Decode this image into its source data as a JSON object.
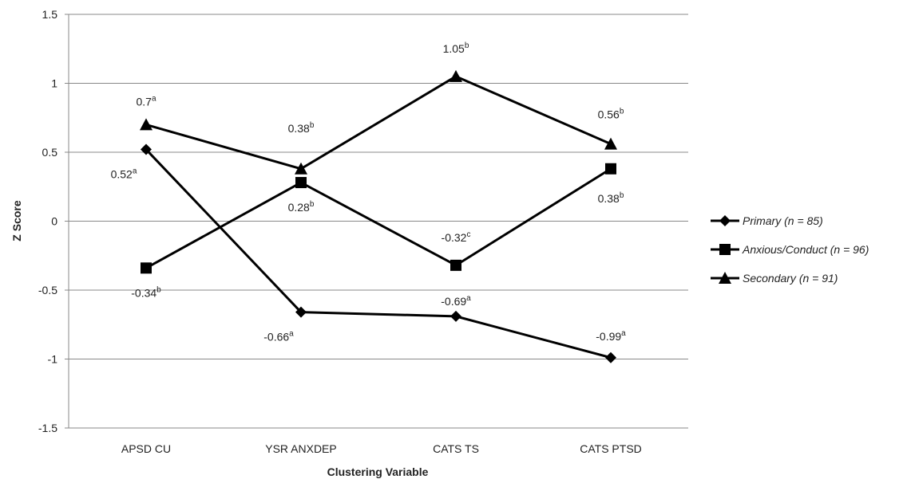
{
  "chart_data": {
    "type": "line",
    "title": "",
    "xlabel": "Clustering Variable",
    "ylabel": "Z Score",
    "categories": [
      "APSD CU",
      "YSR ANXDEP",
      "CATS TS",
      "CATS PTSD"
    ],
    "ylim": [
      -1.5,
      1.5
    ],
    "yticks": [
      "1.5",
      "1",
      "0.5",
      "0",
      "-0.5",
      "-1",
      "-1.5"
    ],
    "ytick_values": [
      1.5,
      1,
      0.5,
      0,
      -0.5,
      -1,
      -1.5
    ],
    "grid": true,
    "legend_position": "right",
    "series": [
      {
        "name": "Primary (n = 85)",
        "marker": "diamond",
        "values": [
          0.52,
          -0.66,
          -0.69,
          -0.99
        ],
        "labels": [
          {
            "value": "0.52",
            "sup": "a"
          },
          {
            "value": "-0.66",
            "sup": "a"
          },
          {
            "value": "-0.69",
            "sup": "a"
          },
          {
            "value": "-0.99",
            "sup": "a"
          }
        ]
      },
      {
        "name": "Anxious/Conduct (n = 96)",
        "marker": "square",
        "values": [
          -0.34,
          0.28,
          -0.32,
          0.38
        ],
        "labels": [
          {
            "value": "-0.34",
            "sup": "b"
          },
          {
            "value": "0.28",
            "sup": "b"
          },
          {
            "value": "-0.32",
            "sup": "c"
          },
          {
            "value": "0.38",
            "sup": "b"
          }
        ]
      },
      {
        "name": "Secondary (n = 91)",
        "marker": "triangle",
        "values": [
          0.7,
          0.38,
          1.05,
          0.56
        ],
        "labels": [
          {
            "value": "0.7",
            "sup": "a"
          },
          {
            "value": "0.38",
            "sup": "b"
          },
          {
            "value": "1.05",
            "sup": "b"
          },
          {
            "value": "0.56",
            "sup": "b"
          }
        ]
      }
    ],
    "colors": {
      "line": "#000000",
      "grid": "#888888",
      "axis": "#888888"
    }
  }
}
